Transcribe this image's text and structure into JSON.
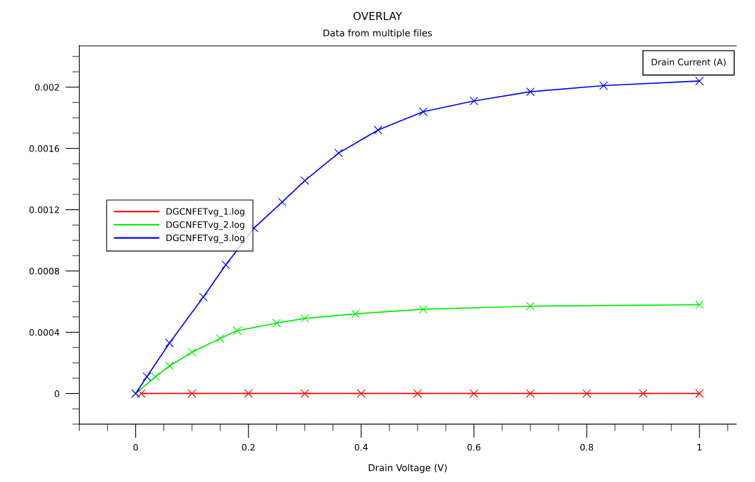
{
  "chart_data": {
    "type": "line",
    "title": "OVERLAY",
    "subtitle": "Data from multiple files",
    "xlabel": "Drain Voltage (V)",
    "ylabel": "Drain Current (A)",
    "xlim": [
      -0.1,
      1.065
    ],
    "xticks": [
      0,
      0.2,
      0.4,
      0.6,
      0.8,
      1
    ],
    "ylim": [
      -0.0002,
      0.00227
    ],
    "yticks": [
      0,
      0.0004,
      0.0008,
      0.0012,
      0.0016,
      0.002
    ],
    "grid": false,
    "legend": "left",
    "marker": "cross",
    "line_style": "solid",
    "series": [
      {
        "name": "DGCNFETvg_1.log",
        "color": "#ff0000",
        "x": [
          0.01,
          0.1,
          0.2,
          0.3,
          0.4,
          0.5,
          0.6,
          0.7,
          0.8,
          0.9,
          1.0
        ],
        "values": [
          0,
          0,
          0,
          0,
          0,
          0,
          0,
          0,
          0,
          0,
          0
        ]
      },
      {
        "name": "DGCNFETvg_2.log",
        "color": "#00ee00",
        "x": [
          0,
          0.035,
          0.06,
          0.1,
          0.15,
          0.18,
          0.25,
          0.3,
          0.39,
          0.51,
          0.7,
          1.0
        ],
        "values": [
          0,
          0.00011,
          0.00018,
          0.00027,
          0.00036,
          0.00041,
          0.00046,
          0.00049,
          0.00052,
          0.00055,
          0.00057,
          0.00058
        ]
      },
      {
        "name": "DGCNFETvg_3.log",
        "color": "#0000ff",
        "x": [
          0,
          0.02,
          0.06,
          0.12,
          0.16,
          0.21,
          0.26,
          0.3,
          0.36,
          0.43,
          0.51,
          0.6,
          0.7,
          0.83,
          1.0
        ],
        "values": [
          0,
          0.00011,
          0.00033,
          0.00063,
          0.00084,
          0.00108,
          0.00125,
          0.00139,
          0.00157,
          0.00172,
          0.00184,
          0.00191,
          0.00197,
          0.00201,
          0.00204
        ]
      }
    ]
  }
}
